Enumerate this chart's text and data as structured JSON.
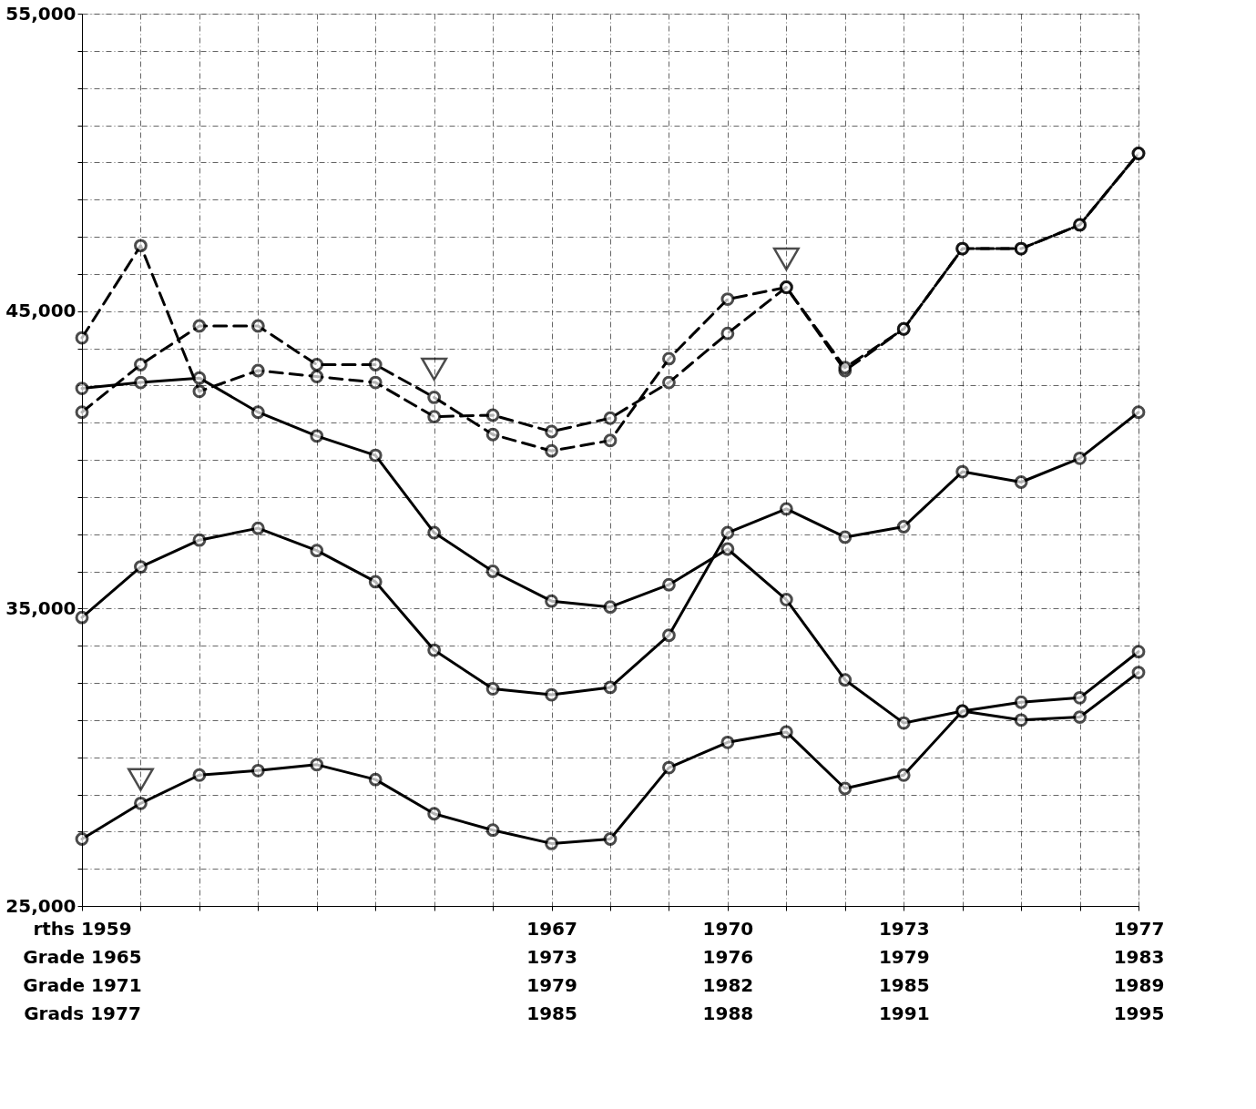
{
  "chart_data": {
    "type": "line",
    "categories": [
      "rths 1959\nGrade 1965\nGrade 1971\nGrads 1977",
      null,
      null,
      null,
      null,
      null,
      null,
      null,
      "1967\n1973\n1979\n1985",
      null,
      null,
      "1970\n1976\n1982\n1988",
      null,
      null,
      "1973\n1979\n1985\n1991",
      null,
      null,
      null,
      "1977\n1983\n1989\n1995"
    ],
    "ylim": [
      25000,
      55000
    ],
    "yticks": [
      {
        "value": 25000,
        "label": "25,000"
      },
      {
        "value": 26250,
        "label": null
      },
      {
        "value": 27500,
        "label": null
      },
      {
        "value": 28750,
        "label": null
      },
      {
        "value": 30000,
        "label": null
      },
      {
        "value": 31250,
        "label": null
      },
      {
        "value": 32500,
        "label": null
      },
      {
        "value": 33750,
        "label": null
      },
      {
        "value": 35000,
        "label": "35,000"
      },
      {
        "value": 36250,
        "label": null
      },
      {
        "value": 37500,
        "label": null
      },
      {
        "value": 38750,
        "label": null
      },
      {
        "value": 40000,
        "label": null
      },
      {
        "value": 41250,
        "label": null
      },
      {
        "value": 42500,
        "label": null
      },
      {
        "value": 43750,
        "label": null
      },
      {
        "value": 45000,
        "label": "45,000"
      },
      {
        "value": 46250,
        "label": null
      },
      {
        "value": 47500,
        "label": null
      },
      {
        "value": 48750,
        "label": null
      },
      {
        "value": 50000,
        "label": null
      },
      {
        "value": 51250,
        "label": null
      },
      {
        "value": 52500,
        "label": null
      },
      {
        "value": 53750,
        "label": null
      },
      {
        "value": 55000,
        "label": "55,000"
      }
    ],
    "grid": true,
    "marker": "circle",
    "series": [
      {
        "color": "#000000",
        "line_style": "dashed",
        "values": [
          41600,
          43200,
          44500,
          44500,
          43200,
          43200,
          42100,
          40850,
          40300,
          40650,
          43400,
          45400,
          45800,
          43000,
          44400,
          47100,
          47100,
          47900,
          50300
        ]
      },
      {
        "color": "#000000",
        "line_style": "dashed",
        "values": [
          44100,
          47200,
          42300,
          43000,
          42800,
          42600,
          41450,
          41500,
          40950,
          41400,
          42600,
          44250,
          45800,
          43100,
          44400,
          47100,
          47100,
          47900,
          50300
        ]
      },
      {
        "color": "#000000",
        "line_style": "solid",
        "values": [
          42400,
          42600,
          42750,
          41600,
          40800,
          40150,
          37550,
          36250,
          35250,
          35050,
          35800,
          37000,
          35300,
          32600,
          31150,
          31550,
          31250,
          31350,
          32850
        ]
      },
      {
        "color": "#000000",
        "line_style": "solid",
        "values": [
          34700,
          36400,
          37300,
          37700,
          36950,
          35900,
          33600,
          32300,
          32100,
          32350,
          34100,
          37550,
          38350,
          37400,
          37750,
          39600,
          39250,
          40050,
          41600
        ]
      },
      {
        "color": "#000000",
        "line_style": "solid",
        "values": [
          27250,
          28450,
          29400,
          29550,
          29750,
          29250,
          28100,
          27550,
          27100,
          27250,
          29650,
          30500,
          30850,
          28950,
          29400,
          31550,
          31850,
          32000,
          33550
        ]
      },
      {
        "type": "scatter",
        "marker": "triangle",
        "color": "#000000",
        "values": [
          null,
          29250,
          null,
          null,
          null,
          null,
          43050,
          null,
          null,
          null,
          null,
          null,
          46750,
          null,
          null,
          null,
          null,
          null,
          null
        ]
      }
    ]
  }
}
